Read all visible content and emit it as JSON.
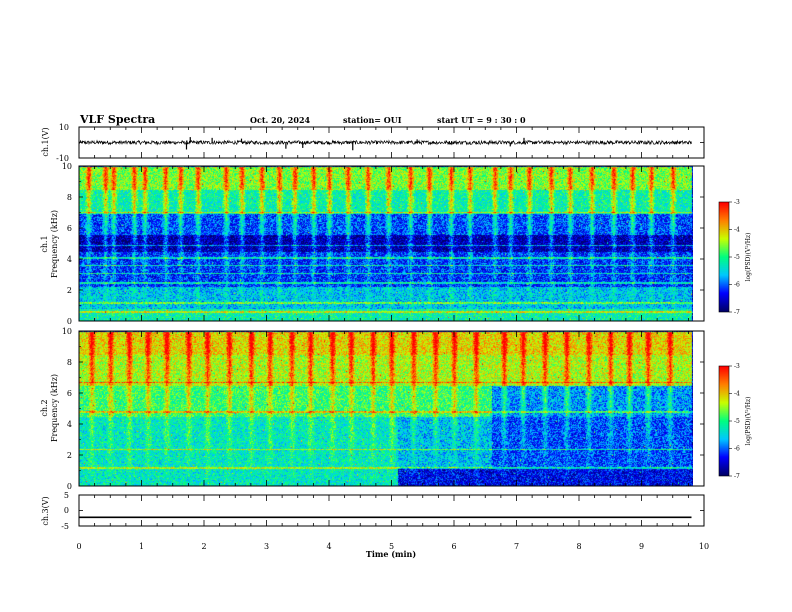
{
  "header": {
    "title": "VLF Spectra",
    "date": "Oct. 20, 2024",
    "station": "station= OUI",
    "start_ut": "start  UT =   9  : 30 : 0"
  },
  "colors": {
    "colormap": [
      "#000066",
      "#0000ff",
      "#00c8ff",
      "#00ff80",
      "#c8ff00",
      "#ff8000",
      "#ff0000"
    ],
    "waveform": "#000000",
    "axes": "#000000"
  },
  "chart_data": [
    {
      "type": "line",
      "panel": "ch1-waveform",
      "ylabel": "ch.1(V)",
      "yticks": [
        "10",
        "-10"
      ],
      "ylim": [
        -10,
        10
      ],
      "x_range_min": [
        0,
        9.8
      ],
      "baseline": 0.0,
      "noise_amplitude": 1.2,
      "spikes": [
        {
          "x": 1.72,
          "y": -4.5
        },
        {
          "x": 1.78,
          "y": 3.5
        },
        {
          "x": 2.13,
          "y": 3.0
        },
        {
          "x": 2.6,
          "y": 2.5
        },
        {
          "x": 3.31,
          "y": -4.0
        },
        {
          "x": 3.58,
          "y": -3.5
        },
        {
          "x": 4.38,
          "y": -5.0
        },
        {
          "x": 5.41,
          "y": 2.0
        },
        {
          "x": 6.9,
          "y": -2.5
        },
        {
          "x": 7.12,
          "y": 3.0
        }
      ]
    },
    {
      "type": "heatmap",
      "panel": "ch1-spectrogram",
      "ylabel_channel": "ch.1",
      "ylabel": "Frequency (kHz)",
      "yticks": [
        "0",
        "2",
        "4",
        "6",
        "8",
        "10"
      ],
      "ylim": [
        0,
        10
      ],
      "xlim_min": [
        0,
        9.8
      ],
      "colorbar": {
        "label": "log(PSD)(V²/Hz)",
        "ticks": [
          "-3",
          "-4",
          "-5",
          "-6",
          "-7"
        ],
        "range": [
          -7,
          -3
        ]
      },
      "bands": [
        {
          "f": [
            0,
            0.8
          ],
          "v": -5.2,
          "seg": [
            [
              0,
              9.8
            ]
          ]
        },
        {
          "f": [
            0.8,
            2.2
          ],
          "v": -5.6,
          "seg": [
            [
              0,
              9.8
            ]
          ]
        },
        {
          "f": [
            2.2,
            4.5
          ],
          "v": -6.2,
          "seg": [
            [
              0,
              9.8
            ]
          ]
        },
        {
          "f": [
            4.5,
            5.6
          ],
          "v": -6.7,
          "seg": [
            [
              0,
              9.8
            ]
          ]
        },
        {
          "f": [
            5.6,
            7.0
          ],
          "v": -6.1,
          "seg": [
            [
              0,
              9.8
            ]
          ]
        },
        {
          "f": [
            7.0,
            8.5
          ],
          "v": -5.2,
          "seg": [
            [
              0,
              9.8
            ]
          ]
        },
        {
          "f": [
            8.5,
            10
          ],
          "v": -4.6,
          "seg": [
            [
              0,
              9.8
            ]
          ]
        }
      ],
      "lines_khz": [
        0.6,
        1.2,
        2.5,
        3.1,
        3.6,
        4.1,
        4.9,
        7.0
      ],
      "bursts_min": [
        0.15,
        0.42,
        0.55,
        0.88,
        1.05,
        1.38,
        1.62,
        1.9,
        2.35,
        2.6,
        2.92,
        3.2,
        3.45,
        3.75,
        4.0,
        4.3,
        4.62,
        4.95,
        5.3,
        5.6,
        5.95,
        6.25,
        6.65,
        6.9,
        7.2,
        7.55,
        7.85,
        8.2,
        8.55,
        8.85,
        9.15,
        9.5
      ]
    },
    {
      "type": "heatmap",
      "panel": "ch2-spectrogram",
      "ylabel_channel": "ch.2",
      "ylabel": "Frequency (kHz)",
      "yticks": [
        "0",
        "2",
        "4",
        "6",
        "8",
        "10"
      ],
      "ylim": [
        0,
        10
      ],
      "xlim_min": [
        0,
        9.8
      ],
      "colorbar": {
        "label": "log(PSD)(V²/Hz)",
        "ticks": [
          "-3",
          "-4",
          "-5",
          "-6",
          "-7"
        ],
        "range": [
          -7,
          -3
        ]
      },
      "bands": [
        {
          "f": [
            0,
            4.5
          ],
          "v": -5.3,
          "seg": [
            [
              0,
              5.1
            ]
          ]
        },
        {
          "f": [
            0,
            1.2
          ],
          "v": -6.4,
          "seg": [
            [
              5.1,
              9.8
            ]
          ]
        },
        {
          "f": [
            1.2,
            4.5
          ],
          "v": -5.6,
          "seg": [
            [
              5.1,
              6.6
            ]
          ]
        },
        {
          "f": [
            1.2,
            4.5
          ],
          "v": -6.1,
          "seg": [
            [
              6.6,
              9.8
            ]
          ]
        },
        {
          "f": [
            4.5,
            6.5
          ],
          "v": -4.9,
          "seg": [
            [
              0,
              6.6
            ]
          ]
        },
        {
          "f": [
            4.5,
            6.5
          ],
          "v": -5.8,
          "seg": [
            [
              6.6,
              9.8
            ]
          ]
        },
        {
          "f": [
            6.5,
            8.5
          ],
          "v": -4.4,
          "seg": [
            [
              0,
              9.8
            ]
          ]
        },
        {
          "f": [
            8.5,
            10
          ],
          "v": -4.1,
          "seg": [
            [
              0,
              9.8
            ]
          ]
        }
      ],
      "lines_khz": [
        1.2,
        2.4,
        4.8,
        6.7
      ],
      "bursts_min": [
        0.2,
        0.5,
        0.8,
        1.1,
        1.4,
        1.75,
        2.05,
        2.4,
        2.75,
        3.05,
        3.4,
        3.7,
        4.05,
        4.35,
        4.7,
        5.0,
        5.35,
        5.7,
        6.0,
        6.35,
        6.8,
        7.1,
        7.45,
        7.8,
        8.15,
        8.5,
        8.8,
        9.1,
        9.45
      ]
    },
    {
      "type": "line",
      "panel": "ch3-waveform",
      "ylabel": "ch.3(V)",
      "yticks": [
        "5",
        "0",
        "-5"
      ],
      "ylim": [
        -5,
        5
      ],
      "x_range_min": [
        0,
        9.8
      ],
      "baseline": -2.2
    }
  ],
  "xaxis": {
    "label": "Time (min)",
    "ticks": [
      "0",
      "1",
      "2",
      "3",
      "4",
      "5",
      "6",
      "7",
      "8",
      "9",
      "10"
    ],
    "xlim": [
      0,
      10
    ]
  }
}
